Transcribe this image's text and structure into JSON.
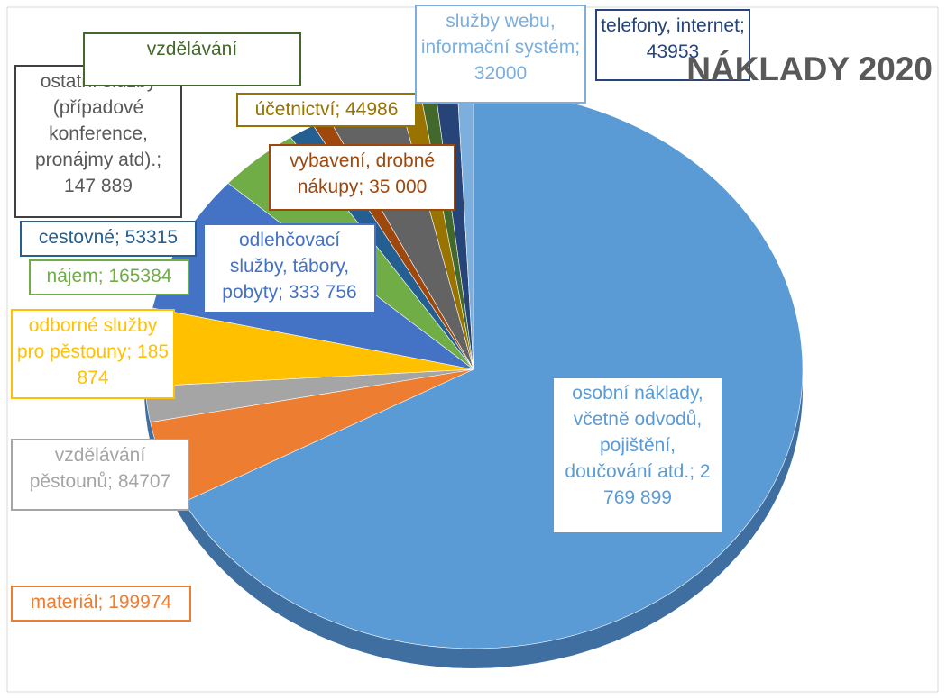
{
  "chart_data": {
    "type": "pie",
    "title": "NÁKLADY 2020",
    "label_separator": "; ",
    "categories": [
      "osobní náklady, včetně odvodů, pojištění, doučování atd.",
      "materiál",
      "vzdělávání pěstounů",
      "odborné služby pro pěstouny",
      "odlehčovací služby, tábory, pobyty",
      "nájem",
      "cestovné",
      "vybavení, drobné nákupy",
      "ostatní služby (případové konference, pronájmy atd).",
      "účetnictví",
      "vzdělávání",
      "telefony, internet",
      "služby webu, informační systém"
    ],
    "values": [
      2769899,
      199974,
      84707,
      185874,
      333756,
      165384,
      53315,
      35000,
      147889,
      44986,
      30000,
      43953,
      32000
    ],
    "value_labels": [
      "2 769 899",
      "199974",
      "84707",
      "185 874",
      "333 756",
      "165384",
      "53315",
      "35 000",
      "147 889",
      "44986",
      null,
      "43953",
      "32000"
    ],
    "colors": [
      "#5b9bd5",
      "#ed7d31",
      "#a5a5a5",
      "#ffc000",
      "#4472c4",
      "#70ad47",
      "#255e91",
      "#9e480e",
      "#636363",
      "#997300",
      "#43682b",
      "#264478",
      "#7cafdd"
    ]
  }
}
